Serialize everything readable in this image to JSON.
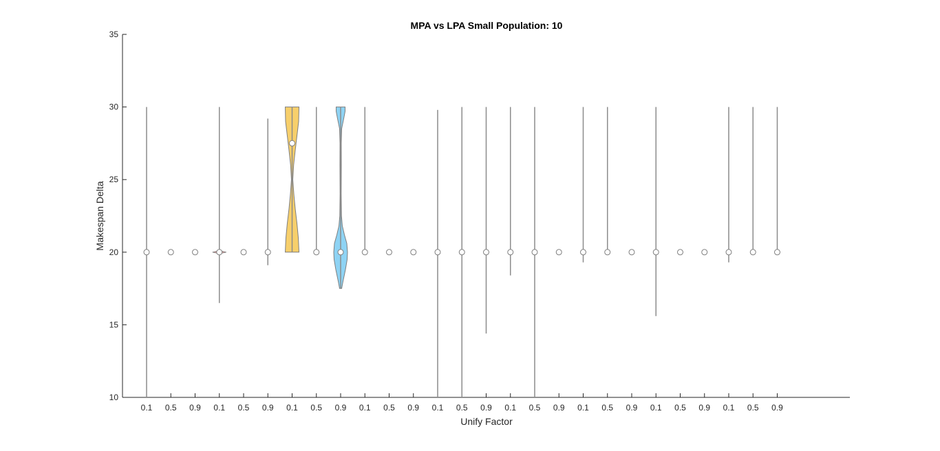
{
  "chart_data": {
    "type": "violin",
    "title": "MPA vs LPA Small Population: 10",
    "xlabel": "Unify Factor",
    "ylabel": "Makespan Delta",
    "ylim": [
      10,
      35
    ],
    "yticks": [
      "10",
      "15",
      "20",
      "25",
      "30",
      "35"
    ],
    "grid": false,
    "categories": [
      "0.1",
      "0.5",
      "0.9",
      "0.1",
      "0.5",
      "0.9",
      "0.1",
      "0.5",
      "0.9",
      "0.1",
      "0.5",
      "0.9",
      "0.1",
      "0.5",
      "0.9",
      "0.1",
      "0.5",
      "0.9",
      "0.1",
      "0.5",
      "0.9",
      "0.1",
      "0.5",
      "0.9",
      "0.1",
      "0.5",
      "0.9"
    ],
    "medians": [
      20,
      20,
      20,
      20,
      20,
      20,
      27.5,
      20,
      20,
      20,
      20,
      20,
      20,
      20,
      20,
      20,
      20,
      20,
      20,
      20,
      20,
      20,
      20,
      20,
      20,
      20,
      20
    ],
    "ranges": [
      [
        10,
        30
      ],
      [
        20,
        20
      ],
      [
        20,
        20
      ],
      [
        16.5,
        30
      ],
      [
        20,
        20
      ],
      [
        19.1,
        29.2
      ],
      [
        20,
        30
      ],
      [
        20,
        30
      ],
      [
        17.5,
        30
      ],
      [
        20,
        30
      ],
      [
        20,
        20
      ],
      [
        20,
        20
      ],
      [
        10,
        29.8
      ],
      [
        10,
        30
      ],
      [
        14.4,
        30
      ],
      [
        18.4,
        30
      ],
      [
        10,
        30
      ],
      [
        20,
        20
      ],
      [
        19.3,
        30
      ],
      [
        20,
        30
      ],
      [
        20,
        20
      ],
      [
        15.6,
        30
      ],
      [
        20,
        20
      ],
      [
        20,
        20
      ],
      [
        19.3,
        30
      ],
      [
        20,
        30
      ],
      [
        20,
        30
      ]
    ],
    "filled_violins": [
      {
        "index": 6,
        "color": "#f7cf6b"
      },
      {
        "index": 8,
        "color": "#8ed3f4"
      }
    ],
    "colors": {
      "axis": "#262626",
      "whisker": "#8c8c8c",
      "violin_edge": "#7f7f7f",
      "marker_fill": "#ffffff",
      "marker_edge": "#7f7f7f",
      "small_violin": "#e8a3a3"
    }
  }
}
